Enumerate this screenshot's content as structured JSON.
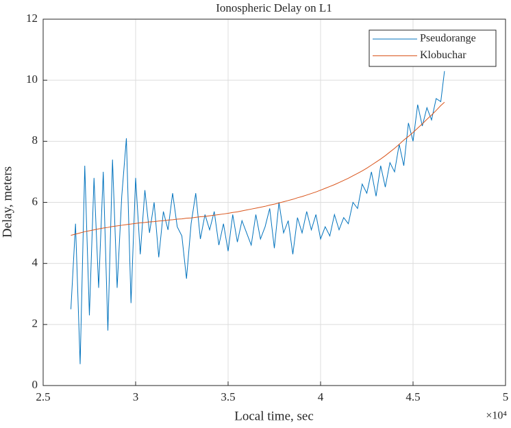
{
  "chart_data": {
    "type": "line",
    "title": "Ionospheric Delay on L1",
    "xlabel": "Local time, sec",
    "ylabel": "Delay, meters",
    "x_multiplier": "×10⁴",
    "x": [
      26500,
      26750,
      27000,
      27250,
      27500,
      27750,
      28000,
      28250,
      28500,
      28750,
      29000,
      29250,
      29500,
      29750,
      30000,
      30250,
      30500,
      30750,
      31000,
      31250,
      31500,
      31750,
      32000,
      32250,
      32500,
      32750,
      33000,
      33250,
      33500,
      33750,
      34000,
      34250,
      34500,
      34750,
      35000,
      35250,
      35500,
      35750,
      36000,
      36250,
      36500,
      36750,
      37000,
      37250,
      37500,
      37750,
      38000,
      38250,
      38500,
      38750,
      39000,
      39250,
      39500,
      39750,
      40000,
      40250,
      40500,
      40750,
      41000,
      41250,
      41500,
      41750,
      42000,
      42250,
      42500,
      42750,
      43000,
      43250,
      43500,
      43750,
      44000,
      44250,
      44500,
      44750,
      45000,
      45250,
      45500,
      45750,
      46000,
      46250,
      46500,
      46700
    ],
    "series": [
      {
        "name": "Pseudorange",
        "color": "#0072BD",
        "values": [
          2.5,
          5.3,
          0.7,
          7.2,
          2.3,
          6.8,
          3.2,
          7.0,
          1.8,
          7.4,
          3.2,
          6.2,
          8.1,
          2.7,
          6.8,
          4.3,
          6.4,
          5.0,
          6.0,
          4.2,
          5.7,
          5.1,
          6.3,
          5.2,
          4.9,
          3.5,
          5.3,
          6.3,
          4.8,
          5.6,
          5.1,
          5.7,
          4.6,
          5.3,
          4.4,
          5.6,
          4.7,
          5.4,
          5.0,
          4.6,
          5.6,
          4.8,
          5.2,
          5.8,
          4.5,
          6.0,
          5.0,
          5.4,
          4.3,
          5.5,
          5.0,
          5.7,
          5.1,
          5.6,
          4.8,
          5.2,
          4.9,
          5.6,
          5.1,
          5.5,
          5.3,
          6.0,
          5.8,
          6.6,
          6.3,
          7.0,
          6.2,
          7.2,
          6.5,
          7.3,
          7.0,
          7.9,
          7.2,
          8.6,
          8.0,
          9.2,
          8.5,
          9.1,
          8.7,
          9.4,
          9.3,
          10.3
        ]
      },
      {
        "name": "Klobuchar",
        "color": "#D95319",
        "values": [
          4.92,
          4.96,
          5.0,
          5.04,
          5.07,
          5.1,
          5.13,
          5.16,
          5.18,
          5.21,
          5.23,
          5.25,
          5.27,
          5.29,
          5.31,
          5.33,
          5.34,
          5.36,
          5.37,
          5.39,
          5.4,
          5.42,
          5.43,
          5.45,
          5.46,
          5.48,
          5.49,
          5.51,
          5.53,
          5.54,
          5.56,
          5.58,
          5.6,
          5.62,
          5.64,
          5.67,
          5.69,
          5.72,
          5.75,
          5.78,
          5.81,
          5.84,
          5.87,
          5.91,
          5.94,
          5.98,
          6.02,
          6.06,
          6.1,
          6.15,
          6.19,
          6.24,
          6.29,
          6.34,
          6.4,
          6.46,
          6.52,
          6.58,
          6.65,
          6.72,
          6.79,
          6.87,
          6.95,
          7.03,
          7.12,
          7.22,
          7.32,
          7.42,
          7.53,
          7.65,
          7.77,
          7.9,
          8.04,
          8.16,
          8.29,
          8.43,
          8.57,
          8.72,
          8.86,
          9.01,
          9.17,
          9.28
        ]
      }
    ],
    "xlim": [
      25000,
      50000
    ],
    "xticks": [
      {
        "value": 25000,
        "label": "2.5"
      },
      {
        "value": 30000,
        "label": "3"
      },
      {
        "value": 35000,
        "label": "3.5"
      },
      {
        "value": 40000,
        "label": "4"
      },
      {
        "value": 45000,
        "label": "4.5"
      },
      {
        "value": 50000,
        "label": "5"
      }
    ],
    "ylim": [
      0,
      12
    ],
    "yticks": [
      0,
      2,
      4,
      6,
      8,
      10,
      12
    ],
    "grid": true,
    "legend": "northeast"
  }
}
